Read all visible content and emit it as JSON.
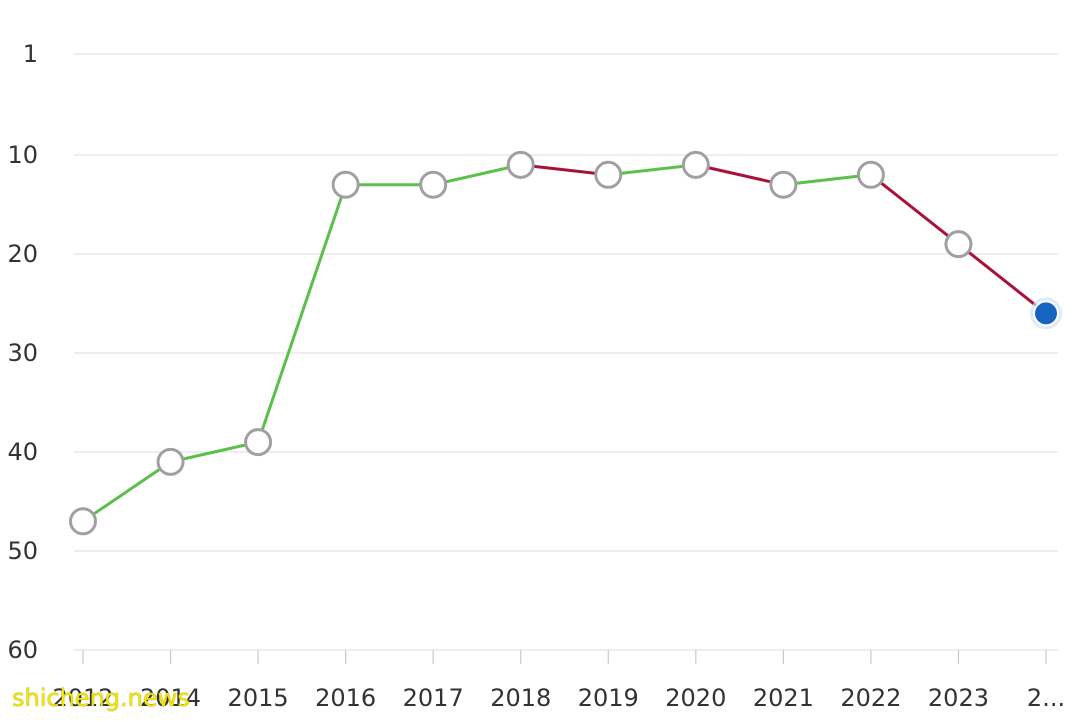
{
  "chart_data": {
    "type": "line",
    "title": "",
    "xlabel": "",
    "ylabel": "",
    "y_inverted": true,
    "ylim": [
      1,
      60
    ],
    "yticks": [
      1,
      10,
      20,
      30,
      40,
      50,
      60
    ],
    "grid": true,
    "categories": [
      "2012",
      "2014",
      "2015",
      "2016",
      "2017",
      "2018",
      "2019",
      "2020",
      "2021",
      "2022",
      "2023",
      "2..."
    ],
    "values": [
      47,
      41,
      39,
      13,
      13,
      11,
      12,
      11,
      13,
      12,
      19,
      26
    ],
    "colors": {
      "improve": "#5cbf4b",
      "decline": "#a8123a",
      "marker_stroke": "#a0a0a0",
      "marker_fill": "#ffffff",
      "highlight_fill": "#1565c0",
      "highlight_halo": "#cfe3f7",
      "grid": "#e3e3e3",
      "text": "#333333"
    },
    "highlight_index": 11
  },
  "watermark": "shicheng.news"
}
